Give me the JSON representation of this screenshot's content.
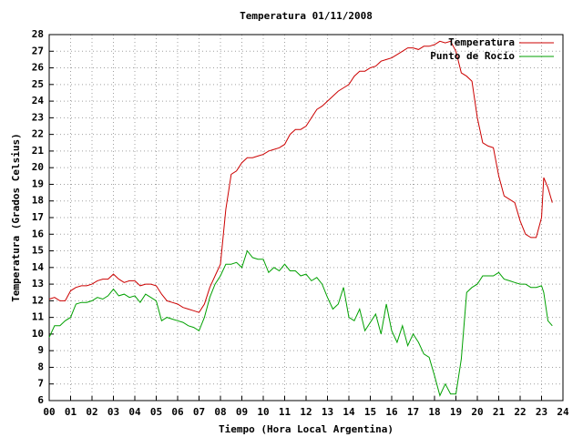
{
  "chart_data": {
    "type": "line",
    "title": "Temperatura 01/11/2008",
    "x_label": "Tiempo (Hora Local Argentina)",
    "y_label": "Temperatura (Grados Celsius)",
    "x": [
      0,
      0.25,
      0.5,
      0.75,
      1,
      1.25,
      1.5,
      1.75,
      2,
      2.25,
      2.5,
      2.75,
      3,
      3.25,
      3.5,
      3.75,
      4,
      4.25,
      4.5,
      4.75,
      5,
      5.25,
      5.5,
      5.75,
      6,
      6.25,
      6.5,
      6.75,
      7,
      7.25,
      7.5,
      7.75,
      8,
      8.25,
      8.5,
      8.75,
      9,
      9.25,
      9.5,
      9.75,
      10,
      10.25,
      10.5,
      10.75,
      11,
      11.25,
      11.5,
      11.75,
      12,
      12.25,
      12.5,
      12.75,
      13,
      13.25,
      13.5,
      13.75,
      14,
      14.25,
      14.5,
      14.75,
      15,
      15.25,
      15.5,
      15.75,
      16,
      16.25,
      16.5,
      16.75,
      17,
      17.25,
      17.5,
      17.75,
      18,
      18.25,
      18.5,
      18.75,
      19,
      19.25,
      19.5,
      19.75,
      20,
      20.25,
      20.5,
      20.75,
      21,
      21.25,
      21.5,
      21.75,
      22,
      22.25,
      22.5,
      22.75,
      23,
      23.1,
      23.3,
      23.5
    ],
    "series": [
      {
        "name": "Temperatura",
        "color": "#cc0000",
        "values": [
          12.1,
          12.2,
          12.0,
          12.0,
          12.6,
          12.8,
          12.9,
          12.9,
          13.0,
          13.2,
          13.3,
          13.3,
          13.6,
          13.3,
          13.1,
          13.2,
          13.2,
          12.9,
          13.0,
          13.0,
          12.9,
          12.4,
          12.0,
          11.9,
          11.8,
          11.6,
          11.5,
          11.4,
          11.3,
          11.8,
          12.8,
          13.5,
          14.2,
          17.5,
          19.6,
          19.8,
          20.3,
          20.6,
          20.6,
          20.7,
          20.8,
          21.0,
          21.1,
          21.2,
          21.4,
          22.0,
          22.3,
          22.3,
          22.5,
          23.0,
          23.5,
          23.7,
          24.0,
          24.3,
          24.6,
          24.8,
          25.0,
          25.5,
          25.8,
          25.8,
          26.0,
          26.1,
          26.4,
          26.5,
          26.6,
          26.8,
          27.0,
          27.2,
          27.2,
          27.1,
          27.3,
          27.3,
          27.4,
          27.6,
          27.5,
          27.6,
          27.0,
          25.7,
          25.5,
          25.2,
          23.0,
          21.5,
          21.3,
          21.2,
          19.5,
          18.3,
          18.1,
          17.9,
          16.8,
          16.0,
          15.8,
          15.8,
          17.0,
          19.4,
          18.8,
          17.9
        ]
      },
      {
        "name": "Punto de Rocío",
        "color": "#00a000",
        "values": [
          9.8,
          10.5,
          10.5,
          10.8,
          11.0,
          11.8,
          11.9,
          11.9,
          12.0,
          12.2,
          12.1,
          12.3,
          12.7,
          12.3,
          12.4,
          12.2,
          12.3,
          11.9,
          12.4,
          12.2,
          12.0,
          10.8,
          11.0,
          10.9,
          10.8,
          10.7,
          10.5,
          10.4,
          10.2,
          11.0,
          12.2,
          13.0,
          13.5,
          14.2,
          14.2,
          14.3,
          14.0,
          15.0,
          14.6,
          14.5,
          14.5,
          13.7,
          14.0,
          13.8,
          14.2,
          13.8,
          13.8,
          13.5,
          13.6,
          13.2,
          13.4,
          13.0,
          12.2,
          11.5,
          11.8,
          12.8,
          11.0,
          10.8,
          11.5,
          10.2,
          10.7,
          11.2,
          10.0,
          11.8,
          10.2,
          9.5,
          10.5,
          9.3,
          10.0,
          9.5,
          8.8,
          8.6,
          7.5,
          6.3,
          7.0,
          6.4,
          6.4,
          8.5,
          12.5,
          12.8,
          13.0,
          13.5,
          13.5,
          13.5,
          13.7,
          13.3,
          13.2,
          13.1,
          13.0,
          13.0,
          12.8,
          12.8,
          12.9,
          12.5,
          10.8,
          10.5
        ]
      }
    ],
    "xlim": [
      0,
      24
    ],
    "xticks": [
      {
        "value": 0,
        "label": "00"
      },
      {
        "value": 1,
        "label": "01"
      },
      {
        "value": 2,
        "label": "02"
      },
      {
        "value": 3,
        "label": "03"
      },
      {
        "value": 4,
        "label": "04"
      },
      {
        "value": 5,
        "label": "05"
      },
      {
        "value": 6,
        "label": "06"
      },
      {
        "value": 7,
        "label": "07"
      },
      {
        "value": 8,
        "label": "08"
      },
      {
        "value": 9,
        "label": "09"
      },
      10,
      11,
      12,
      13,
      14,
      15,
      16,
      17,
      18,
      19,
      20,
      21,
      22,
      23,
      24
    ],
    "ylim": [
      6,
      28
    ],
    "yticks": [
      6,
      7,
      8,
      9,
      10,
      11,
      12,
      13,
      14,
      15,
      16,
      17,
      18,
      19,
      20,
      21,
      22,
      23,
      24,
      25,
      26,
      27,
      28
    ],
    "grid": true,
    "legend": "top-right"
  }
}
